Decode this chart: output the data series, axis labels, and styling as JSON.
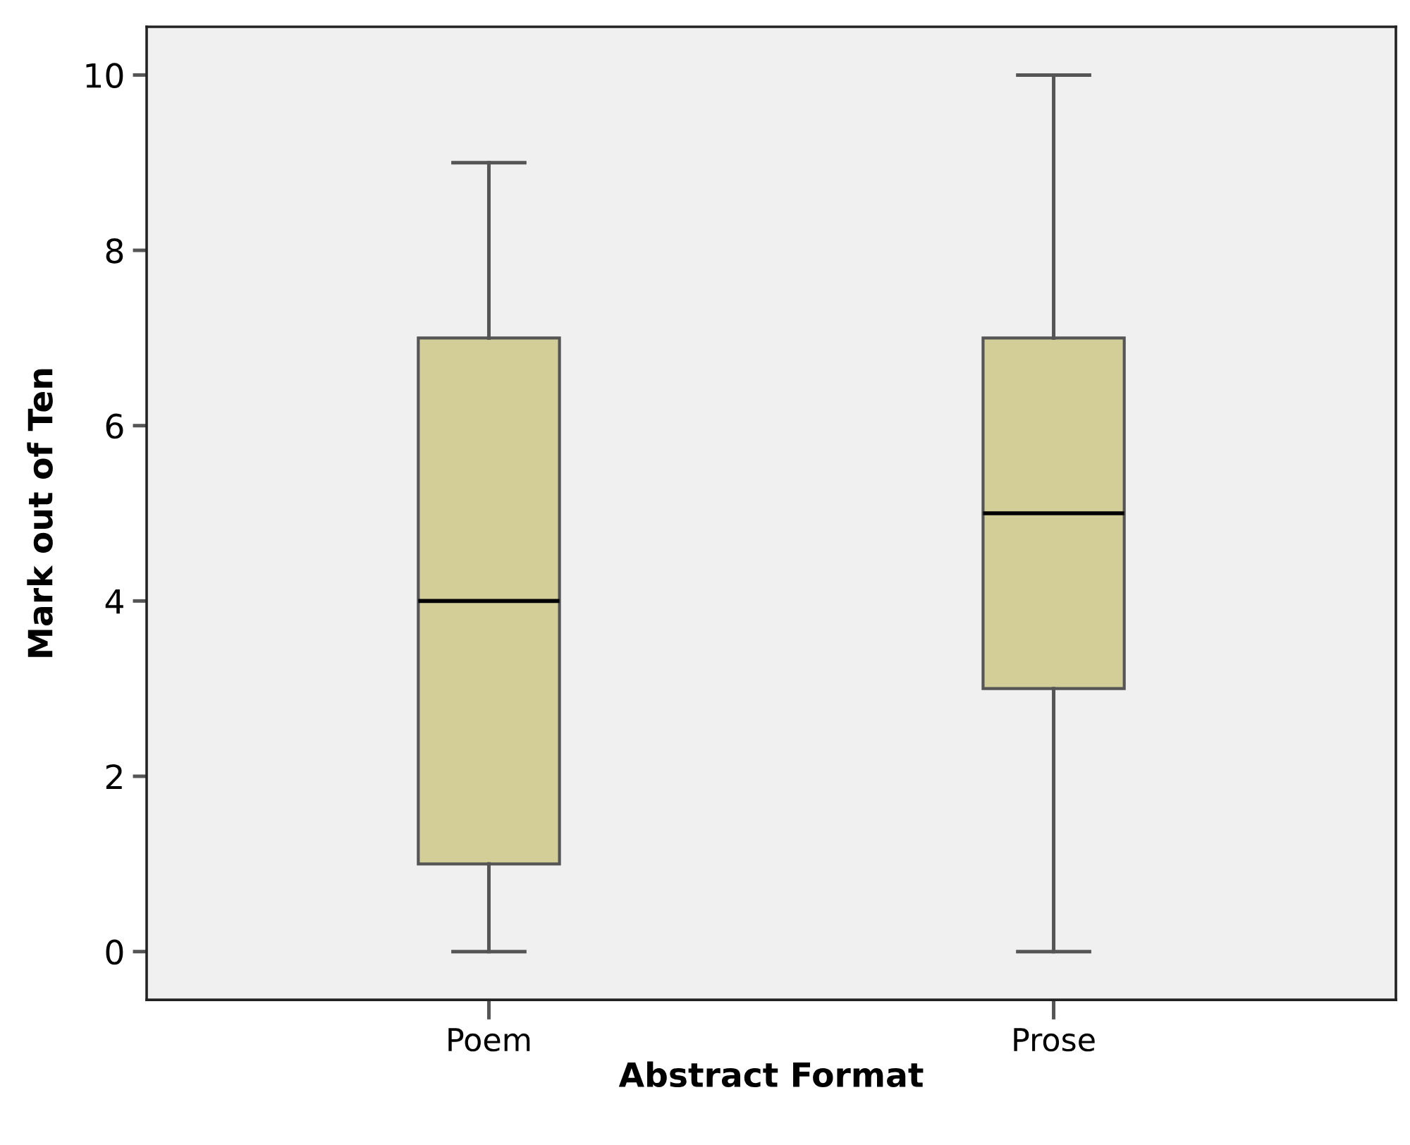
{
  "chart_data": {
    "type": "box",
    "xlabel": "Abstract Format",
    "ylabel": "Mark out of Ten",
    "categories": [
      "Poem",
      "Prose"
    ],
    "boxes": [
      {
        "low": 0,
        "q1": 1,
        "median": 4,
        "q3": 7,
        "high": 9
      },
      {
        "low": 0,
        "q1": 3,
        "median": 5,
        "q3": 7,
        "high": 10
      }
    ],
    "color": "#d3ce98",
    "ylim": [
      -0.55,
      10.55
    ],
    "yticks": [
      0,
      2,
      4,
      6,
      8,
      10
    ],
    "grid": false,
    "legend": false
  }
}
